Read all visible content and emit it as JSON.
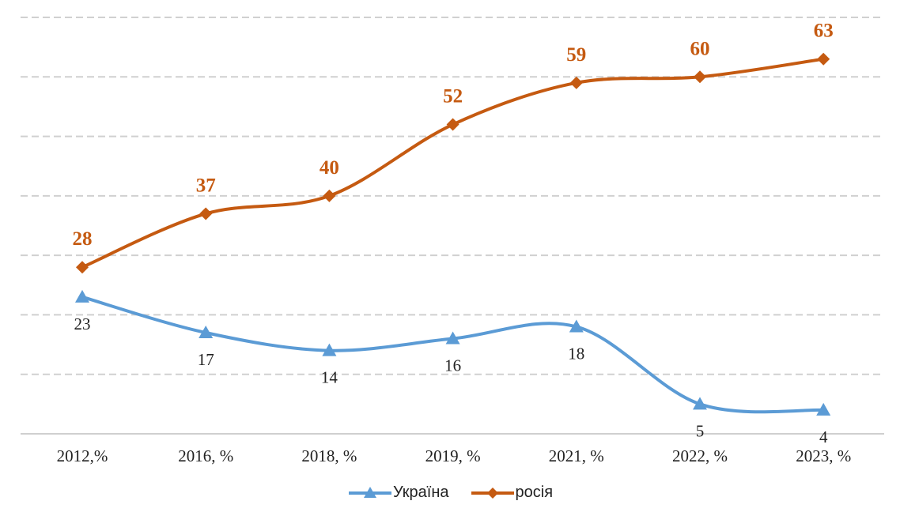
{
  "chart_data": {
    "type": "line",
    "categories": [
      "2012,%",
      "2016, %",
      "2018, %",
      "2019, %",
      "2021, %",
      "2022, %",
      "2023, %"
    ],
    "series": [
      {
        "name": "Україна",
        "values": [
          23,
          17,
          14,
          16,
          18,
          5,
          4
        ],
        "color": "#5B9BD5",
        "marker": "triangle"
      },
      {
        "name": "росія",
        "values": [
          28,
          37,
          40,
          52,
          59,
          60,
          63
        ],
        "color": "#C55A11",
        "marker": "diamond"
      }
    ],
    "title": "",
    "xlabel": "",
    "ylabel": "",
    "ylim": [
      0,
      70
    ],
    "grid": "horizontal dashed",
    "legend_position": "bottom",
    "smooth_lines": true,
    "data_labels": true
  }
}
